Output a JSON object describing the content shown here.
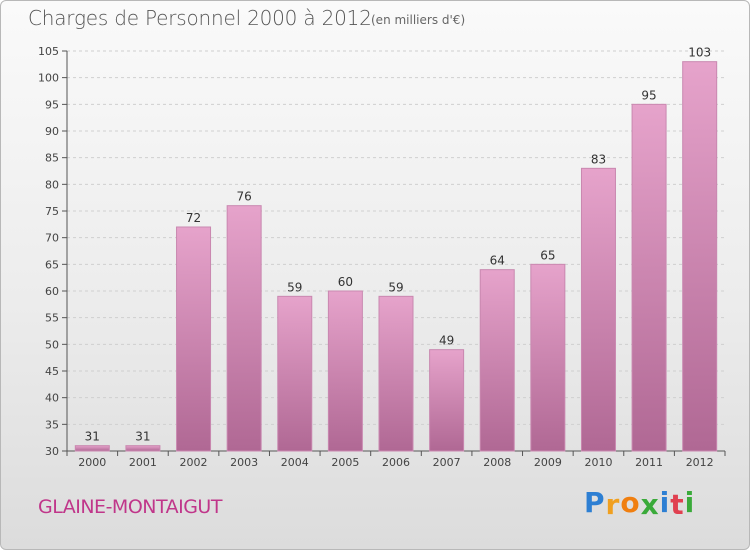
{
  "chart_data": {
    "type": "bar",
    "title": "Charges de Personnel 2000 à 2012",
    "subtitle": "(en milliers d'€)",
    "categories": [
      "2000",
      "2001",
      "2002",
      "2003",
      "2004",
      "2005",
      "2006",
      "2007",
      "2008",
      "2009",
      "2010",
      "2011",
      "2012"
    ],
    "values": [
      31,
      31,
      72,
      76,
      59,
      60,
      59,
      49,
      64,
      65,
      83,
      95,
      103
    ],
    "ylim": [
      30,
      105
    ],
    "yticks": [
      30,
      35,
      40,
      45,
      50,
      55,
      60,
      65,
      70,
      75,
      80,
      85,
      90,
      95,
      100,
      105
    ],
    "grid": true,
    "bar_color": "#d98cb8",
    "bar_color_dark": "#b3679a"
  },
  "footer": {
    "commune": "GLAINE-MONTAIGUT",
    "brand_letters": [
      "P",
      "r",
      "o",
      "x",
      "i",
      "t",
      "i"
    ],
    "brand_colors": [
      "#2d7fd3",
      "#f0a020",
      "#f07f10",
      "#3aaa3a",
      "#2d7fd3",
      "#e04050",
      "#3aaa3a"
    ]
  }
}
